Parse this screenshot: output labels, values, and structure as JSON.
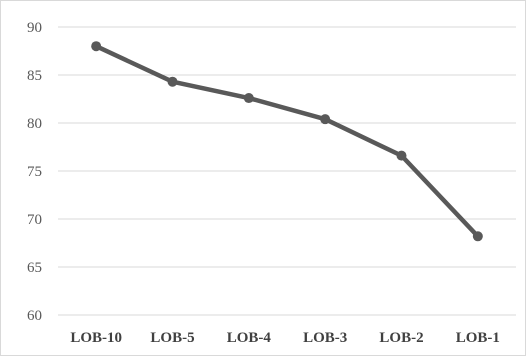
{
  "chart_data": {
    "type": "line",
    "title": "",
    "xlabel": "",
    "ylabel": "",
    "categories": [
      "LOB-10",
      "LOB-5",
      "LOB-4",
      "LOB-3",
      "LOB-2",
      "LOB-1"
    ],
    "series": [
      {
        "values": [
          88.0,
          84.3,
          82.6,
          80.4,
          76.6,
          68.2
        ]
      }
    ],
    "ylim": [
      60,
      90
    ],
    "yticks": [
      "60",
      "65",
      "70",
      "75",
      "80",
      "85",
      "90"
    ],
    "grid": true,
    "legend": "none"
  },
  "colors": {
    "series": "#595959",
    "grid": "#d9d9d9"
  }
}
